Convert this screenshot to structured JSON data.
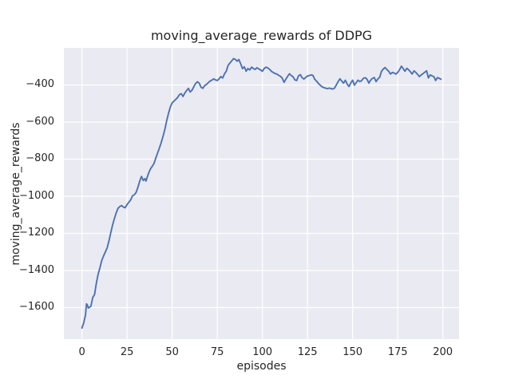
{
  "chart_data": {
    "type": "line",
    "title": "moving_average_rewards of DDPG",
    "xlabel": "episodes",
    "ylabel": "moving_average_rewards",
    "xlim": [
      -10,
      209
    ],
    "ylim": [
      -1770,
      -200
    ],
    "xticks": [
      0,
      25,
      50,
      75,
      100,
      125,
      150,
      175,
      200
    ],
    "xticklabels": [
      "0",
      "25",
      "50",
      "75",
      "100",
      "125",
      "150",
      "175",
      "200"
    ],
    "yticks": [
      -400,
      -600,
      -800,
      -1000,
      -1200,
      -1400,
      -1600
    ],
    "yticklabels": [
      "−400",
      "−600",
      "−800",
      "−1000",
      "−1200",
      "−1400",
      "−1600"
    ],
    "grid": true,
    "legend": false,
    "style": "seaborn-darkgrid",
    "colors": {
      "line": "#4C72B0",
      "axes_background": "#EAEAF2",
      "grid": "#FFFFFF",
      "text": "#262626",
      "figure_background": "#FFFFFF"
    },
    "series": [
      {
        "name": "moving_average_rewards",
        "x": [
          0,
          1,
          2,
          2.5,
          3,
          3.5,
          4,
          5,
          6,
          7,
          8,
          9,
          10,
          11,
          12,
          13,
          14,
          15,
          16,
          17,
          18,
          19,
          20,
          21,
          22,
          23,
          24,
          25,
          26,
          27,
          28,
          29,
          30,
          31,
          32,
          33,
          34,
          35,
          35.5,
          36,
          37,
          38,
          39,
          40,
          41,
          42,
          43,
          44,
          45,
          46,
          47,
          48,
          49,
          50,
          51,
          52,
          53,
          54,
          55,
          56,
          57,
          58,
          59,
          60,
          61,
          62,
          63,
          64,
          65,
          66,
          67,
          68,
          69,
          70,
          71,
          72,
          73,
          74,
          75,
          76,
          77,
          78,
          79,
          80,
          81,
          82,
          83,
          84,
          85,
          86,
          87,
          88,
          89,
          90,
          91,
          92,
          93,
          94,
          95,
          96,
          97,
          98,
          99,
          100,
          101,
          102,
          103,
          104,
          105,
          106,
          107,
          108,
          109,
          110,
          111,
          112,
          113,
          114,
          115,
          116,
          117,
          118,
          119,
          120,
          121,
          122,
          123,
          124,
          125,
          126,
          127,
          128,
          129,
          130,
          131,
          132,
          133,
          134,
          135,
          136,
          137,
          138,
          139,
          140,
          141,
          142,
          143,
          144,
          145,
          146,
          147,
          148,
          149,
          150,
          151,
          152,
          153,
          154,
          155,
          156,
          157,
          158,
          159,
          160,
          161,
          162,
          163,
          164,
          165,
          166,
          167,
          168,
          169,
          170,
          171,
          172,
          173,
          174,
          175,
          176,
          177,
          178,
          179,
          180,
          181,
          182,
          183,
          184,
          185,
          186,
          187,
          188,
          189,
          190,
          191,
          192,
          193,
          194,
          195,
          196,
          197,
          198,
          199
        ],
        "y": [
          -1710,
          -1682,
          -1640,
          -1580,
          -1585,
          -1602,
          -1600,
          -1592,
          -1545,
          -1530,
          -1468,
          -1420,
          -1385,
          -1345,
          -1322,
          -1300,
          -1278,
          -1240,
          -1195,
          -1155,
          -1120,
          -1090,
          -1065,
          -1055,
          -1050,
          -1058,
          -1062,
          -1045,
          -1032,
          -1020,
          -998,
          -992,
          -980,
          -952,
          -920,
          -893,
          -915,
          -905,
          -918,
          -902,
          -875,
          -852,
          -838,
          -822,
          -792,
          -765,
          -738,
          -708,
          -675,
          -638,
          -592,
          -552,
          -518,
          -497,
          -487,
          -478,
          -468,
          -452,
          -447,
          -462,
          -444,
          -430,
          -418,
          -438,
          -428,
          -410,
          -392,
          -383,
          -390,
          -412,
          -418,
          -404,
          -397,
          -388,
          -379,
          -374,
          -367,
          -373,
          -376,
          -367,
          -355,
          -362,
          -340,
          -326,
          -294,
          -282,
          -270,
          -258,
          -262,
          -272,
          -263,
          -287,
          -312,
          -302,
          -326,
          -311,
          -319,
          -304,
          -311,
          -316,
          -307,
          -313,
          -319,
          -326,
          -311,
          -304,
          -308,
          -316,
          -326,
          -333,
          -338,
          -341,
          -348,
          -353,
          -363,
          -386,
          -369,
          -353,
          -340,
          -349,
          -356,
          -373,
          -376,
          -351,
          -344,
          -361,
          -368,
          -359,
          -352,
          -349,
          -346,
          -348,
          -369,
          -379,
          -391,
          -401,
          -409,
          -414,
          -417,
          -420,
          -417,
          -420,
          -422,
          -417,
          -399,
          -381,
          -367,
          -379,
          -390,
          -374,
          -396,
          -408,
          -389,
          -374,
          -401,
          -387,
          -374,
          -382,
          -377,
          -364,
          -361,
          -369,
          -390,
          -374,
          -364,
          -360,
          -382,
          -367,
          -359,
          -326,
          -314,
          -306,
          -317,
          -326,
          -341,
          -332,
          -336,
          -341,
          -332,
          -318,
          -299,
          -311,
          -326,
          -310,
          -318,
          -329,
          -341,
          -324,
          -332,
          -343,
          -355,
          -346,
          -339,
          -331,
          -324,
          -362,
          -346,
          -351,
          -355,
          -376,
          -360,
          -364,
          -369
        ]
      }
    ]
  }
}
